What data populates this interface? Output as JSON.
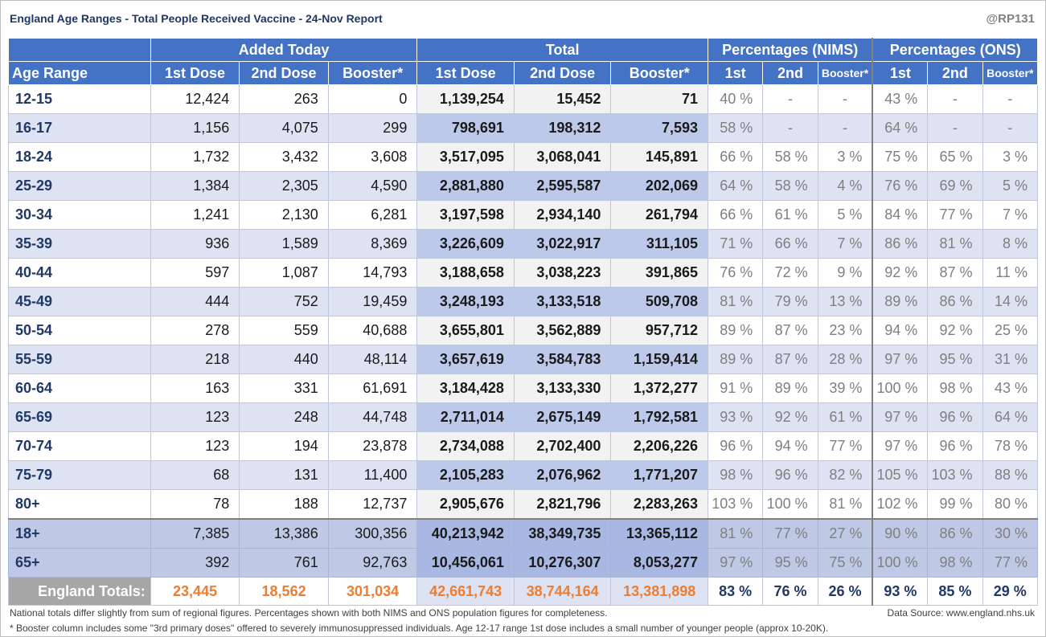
{
  "title": "England Age Ranges - Total People Received Vaccine - 24-Nov Report",
  "handle": "@RP131",
  "groups": {
    "added": "Added Today",
    "total": "Total",
    "nims": "Percentages (NIMS)",
    "ons": "Percentages (ONS)"
  },
  "cols": {
    "age": "Age Range",
    "d1": "1st Dose",
    "d2": "2nd Dose",
    "boost": "Booster*",
    "p1": "1st",
    "p2": "2nd"
  },
  "rows": [
    {
      "age": "12-15",
      "a1": "12,424",
      "a2": "263",
      "a3": "0",
      "t1": "1,139,254",
      "t2": "15,452",
      "t3": "71",
      "n1": "40 %",
      "n2": "-",
      "n3": "-",
      "o1": "43 %",
      "o2": "-",
      "o3": "-"
    },
    {
      "age": "16-17",
      "a1": "1,156",
      "a2": "4,075",
      "a3": "299",
      "t1": "798,691",
      "t2": "198,312",
      "t3": "7,593",
      "n1": "58 %",
      "n2": "-",
      "n3": "-",
      "o1": "64 %",
      "o2": "-",
      "o3": "-"
    },
    {
      "age": "18-24",
      "a1": "1,732",
      "a2": "3,432",
      "a3": "3,608",
      "t1": "3,517,095",
      "t2": "3,068,041",
      "t3": "145,891",
      "n1": "66 %",
      "n2": "58 %",
      "n3": "3 %",
      "o1": "75 %",
      "o2": "65 %",
      "o3": "3 %"
    },
    {
      "age": "25-29",
      "a1": "1,384",
      "a2": "2,305",
      "a3": "4,590",
      "t1": "2,881,880",
      "t2": "2,595,587",
      "t3": "202,069",
      "n1": "64 %",
      "n2": "58 %",
      "n3": "4 %",
      "o1": "76 %",
      "o2": "69 %",
      "o3": "5 %"
    },
    {
      "age": "30-34",
      "a1": "1,241",
      "a2": "2,130",
      "a3": "6,281",
      "t1": "3,197,598",
      "t2": "2,934,140",
      "t3": "261,794",
      "n1": "66 %",
      "n2": "61 %",
      "n3": "5 %",
      "o1": "84 %",
      "o2": "77 %",
      "o3": "7 %"
    },
    {
      "age": "35-39",
      "a1": "936",
      "a2": "1,589",
      "a3": "8,369",
      "t1": "3,226,609",
      "t2": "3,022,917",
      "t3": "311,105",
      "n1": "71 %",
      "n2": "66 %",
      "n3": "7 %",
      "o1": "86 %",
      "o2": "81 %",
      "o3": "8 %"
    },
    {
      "age": "40-44",
      "a1": "597",
      "a2": "1,087",
      "a3": "14,793",
      "t1": "3,188,658",
      "t2": "3,038,223",
      "t3": "391,865",
      "n1": "76 %",
      "n2": "72 %",
      "n3": "9 %",
      "o1": "92 %",
      "o2": "87 %",
      "o3": "11 %"
    },
    {
      "age": "45-49",
      "a1": "444",
      "a2": "752",
      "a3": "19,459",
      "t1": "3,248,193",
      "t2": "3,133,518",
      "t3": "509,708",
      "n1": "81 %",
      "n2": "79 %",
      "n3": "13 %",
      "o1": "89 %",
      "o2": "86 %",
      "o3": "14 %"
    },
    {
      "age": "50-54",
      "a1": "278",
      "a2": "559",
      "a3": "40,688",
      "t1": "3,655,801",
      "t2": "3,562,889",
      "t3": "957,712",
      "n1": "89 %",
      "n2": "87 %",
      "n3": "23 %",
      "o1": "94 %",
      "o2": "92 %",
      "o3": "25 %"
    },
    {
      "age": "55-59",
      "a1": "218",
      "a2": "440",
      "a3": "48,114",
      "t1": "3,657,619",
      "t2": "3,584,783",
      "t3": "1,159,414",
      "n1": "89 %",
      "n2": "87 %",
      "n3": "28 %",
      "o1": "97 %",
      "o2": "95 %",
      "o3": "31 %"
    },
    {
      "age": "60-64",
      "a1": "163",
      "a2": "331",
      "a3": "61,691",
      "t1": "3,184,428",
      "t2": "3,133,330",
      "t3": "1,372,277",
      "n1": "91 %",
      "n2": "89 %",
      "n3": "39 %",
      "o1": "100 %",
      "o2": "98 %",
      "o3": "43 %"
    },
    {
      "age": "65-69",
      "a1": "123",
      "a2": "248",
      "a3": "44,748",
      "t1": "2,711,014",
      "t2": "2,675,149",
      "t3": "1,792,581",
      "n1": "93 %",
      "n2": "92 %",
      "n3": "61 %",
      "o1": "97 %",
      "o2": "96 %",
      "o3": "64 %"
    },
    {
      "age": "70-74",
      "a1": "123",
      "a2": "194",
      "a3": "23,878",
      "t1": "2,734,088",
      "t2": "2,702,400",
      "t3": "2,206,226",
      "n1": "96 %",
      "n2": "94 %",
      "n3": "77 %",
      "o1": "97 %",
      "o2": "96 %",
      "o3": "78 %"
    },
    {
      "age": "75-79",
      "a1": "68",
      "a2": "131",
      "a3": "11,400",
      "t1": "2,105,283",
      "t2": "2,076,962",
      "t3": "1,771,207",
      "n1": "98 %",
      "n2": "96 %",
      "n3": "82 %",
      "o1": "105 %",
      "o2": "103 %",
      "o3": "88 %"
    },
    {
      "age": "80+",
      "a1": "78",
      "a2": "188",
      "a3": "12,737",
      "t1": "2,905,676",
      "t2": "2,821,796",
      "t3": "2,283,263",
      "n1": "103 %",
      "n2": "100 %",
      "n3": "81 %",
      "o1": "102 %",
      "o2": "99 %",
      "o3": "80 %"
    }
  ],
  "summary": [
    {
      "age": "18+",
      "a1": "7,385",
      "a2": "13,386",
      "a3": "300,356",
      "t1": "40,213,942",
      "t2": "38,349,735",
      "t3": "13,365,112",
      "n1": "81 %",
      "n2": "77 %",
      "n3": "27 %",
      "o1": "90 %",
      "o2": "86 %",
      "o3": "30 %"
    },
    {
      "age": "65+",
      "a1": "392",
      "a2": "761",
      "a3": "92,763",
      "t1": "10,456,061",
      "t2": "10,276,307",
      "t3": "8,053,277",
      "n1": "97 %",
      "n2": "95 %",
      "n3": "75 %",
      "o1": "100 %",
      "o2": "98 %",
      "o3": "77 %"
    }
  ],
  "england": {
    "label": "England Totals:",
    "a1": "23,445",
    "a2": "18,562",
    "a3": "301,034",
    "t1": "42,661,743",
    "t2": "38,744,164",
    "t3": "13,381,898",
    "n1": "83 %",
    "n2": "76 %",
    "n3": "26 %",
    "o1": "93 %",
    "o2": "85 %",
    "o3": "29 %"
  },
  "footnote1": "National totals differ slightly from sum of regional figures. Percentages shown with both NIMS and ONS population figures for completeness.",
  "footnote2": "* Booster column includes some \"3rd primary doses\" offered to severely immunosuppressed individuals. Age 12-17 range 1st dose includes a small number of younger people (approx 10-20K).",
  "source": "Data Source: www.england.nhs.uk",
  "colors": {
    "header": "#4472c4",
    "band": "#dde3f3",
    "total_band": "#bdc9ea",
    "orange": "#ed7d31",
    "navy": "#1f3864"
  }
}
